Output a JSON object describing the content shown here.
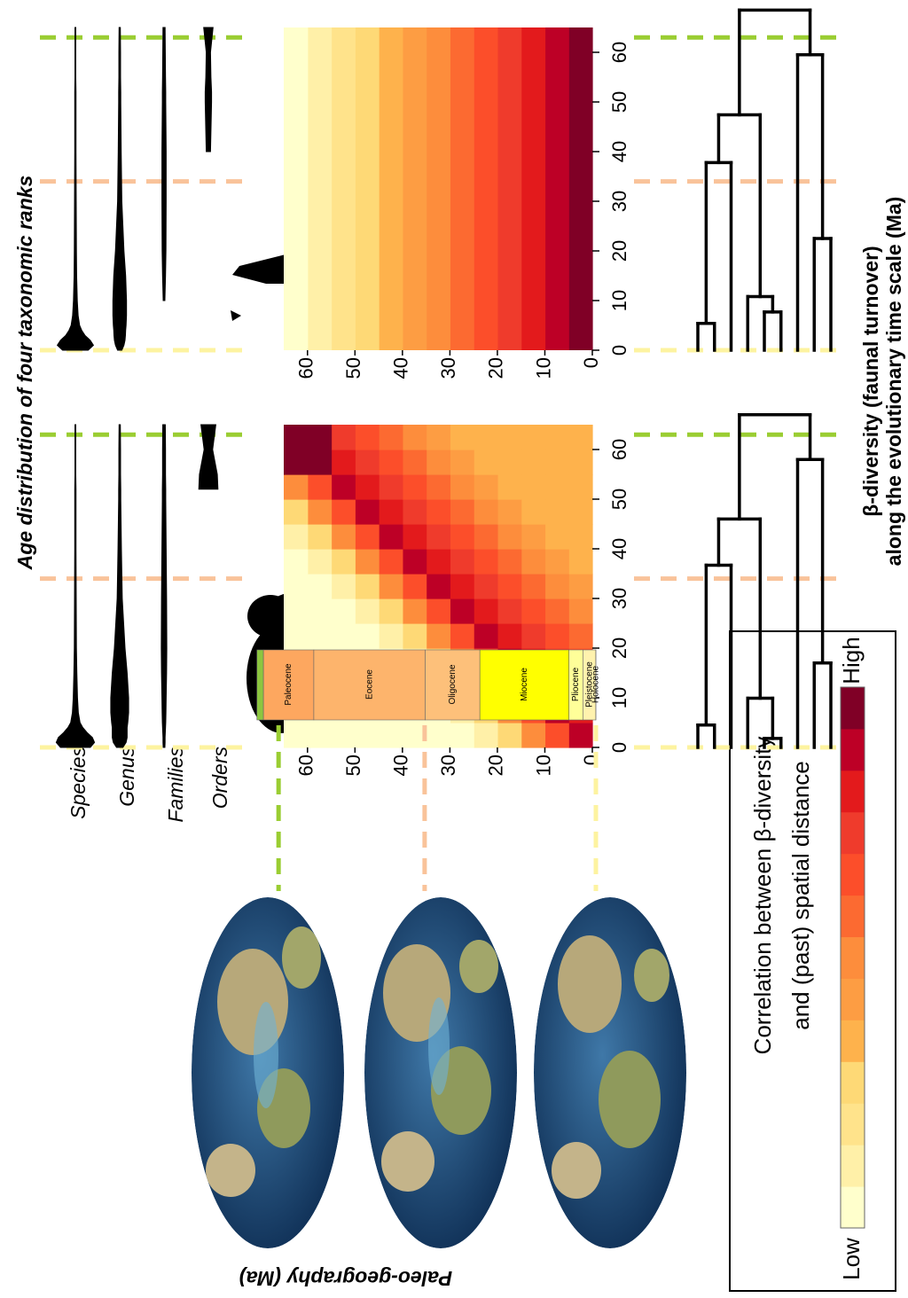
{
  "title": "Age distribution of four taxonomic ranks",
  "ranks": [
    "Species",
    "Genus",
    "Families",
    "Orders"
  ],
  "markers": [
    {
      "age": 63,
      "color": "#9acd32"
    },
    {
      "age": 34,
      "color": "#f9c39a"
    },
    {
      "age": 0,
      "color": "#fdf3a0"
    }
  ],
  "panels": [
    {
      "violins": {
        "ages": [
          0,
          1,
          2,
          3,
          4,
          5,
          7,
          10,
          15,
          20,
          30,
          40,
          50,
          52,
          55,
          60,
          65
        ],
        "density": [
          [
            0.7,
            0.9,
            0.8,
            0.55,
            0.35,
            0.22,
            0.14,
            0.1,
            0.07,
            0.05,
            0.04,
            0.03,
            0.03,
            0.03,
            0.02,
            0.02,
            0.02
          ],
          [
            0.15,
            0.3,
            0.35,
            0.35,
            0.35,
            0.38,
            0.42,
            0.42,
            0.35,
            0.25,
            0.12,
            0.08,
            0.05,
            0.05,
            0.04,
            0.04,
            0.03
          ],
          [
            0.04,
            0.05,
            0.05,
            0.06,
            0.07,
            0.08,
            0.09,
            0.1,
            0.12,
            0.13,
            0.12,
            0.1,
            0.08,
            0.08,
            0.07,
            0.07,
            0.06
          ],
          [
            null,
            null,
            null,
            null,
            null,
            null,
            null,
            null,
            null,
            null,
            null,
            null,
            null,
            0.45,
            0.42,
            0.2,
            0.35
          ]
        ]
      },
      "heatmap": {
        "lim": [
          0,
          65
        ],
        "ticks": [
          0,
          10,
          20,
          30,
          40,
          50,
          60
        ],
        "matrix": [
          [
            11,
            8,
            6,
            3,
            1,
            0,
            0,
            0,
            0,
            0,
            0,
            0,
            0
          ],
          [
            10,
            11,
            8,
            6,
            3,
            1,
            0,
            0,
            0,
            0,
            0,
            0,
            0
          ],
          [
            9,
            10,
            11,
            8,
            6,
            3,
            1,
            0,
            0,
            0,
            0,
            0,
            0
          ],
          [
            8,
            9,
            10,
            11,
            8,
            6,
            3,
            1,
            0,
            0,
            0,
            0,
            0
          ],
          [
            7,
            8,
            9,
            10,
            11,
            8,
            6,
            3,
            1,
            0,
            0,
            0,
            0
          ],
          [
            6,
            7,
            8,
            9,
            10,
            11,
            8,
            6,
            3,
            1,
            0,
            0,
            0
          ],
          [
            5,
            6,
            7,
            8,
            9,
            10,
            11,
            8,
            6,
            3,
            1,
            0,
            0
          ],
          [
            4,
            5,
            6,
            7,
            8,
            9,
            10,
            11,
            8,
            6,
            3,
            1,
            0
          ],
          [
            4,
            4,
            5,
            6,
            7,
            8,
            9,
            10,
            11,
            8,
            6,
            3,
            1
          ],
          [
            4,
            4,
            4,
            5,
            6,
            7,
            8,
            9,
            10,
            11,
            8,
            6,
            3
          ],
          [
            4,
            4,
            4,
            4,
            5,
            6,
            7,
            8,
            9,
            10,
            11,
            8,
            6
          ],
          [
            4,
            4,
            4,
            4,
            4,
            5,
            6,
            7,
            8,
            9,
            10,
            12,
            12
          ],
          [
            4,
            4,
            4,
            4,
            4,
            4,
            5,
            6,
            7,
            8,
            9,
            12,
            12
          ]
        ]
      },
      "dendrogram": {
        "merges": [
          [
            -1,
            -2,
            4.5
          ],
          [
            1,
            -3,
            36.7
          ],
          [
            -5,
            -6,
            1.8
          ],
          [
            -4,
            3,
            9.9
          ],
          [
            2,
            4,
            46
          ],
          [
            -8,
            -9,
            17
          ],
          [
            -7,
            6,
            58
          ],
          [
            5,
            7,
            67
          ]
        ]
      }
    },
    {
      "violins": {
        "ages": [
          0,
          1,
          2,
          3,
          4,
          5,
          7,
          10,
          15,
          20,
          30,
          40,
          50,
          52,
          55,
          60,
          65
        ],
        "density": [
          [
            0.6,
            0.85,
            0.7,
            0.45,
            0.3,
            0.2,
            0.13,
            0.09,
            0.06,
            0.05,
            0.04,
            0.03,
            0.03,
            0.03,
            0.02,
            0.02,
            0.02
          ],
          [
            0.1,
            0.2,
            0.25,
            0.27,
            0.28,
            0.3,
            0.32,
            0.32,
            0.28,
            0.2,
            0.1,
            0.07,
            0.05,
            0.05,
            0.04,
            0.04,
            0.03
          ],
          [
            null,
            null,
            null,
            null,
            null,
            null,
            null,
            0.04,
            0.07,
            0.09,
            0.1,
            0.1,
            0.08,
            0.08,
            0.07,
            0.06,
            0.05
          ],
          [
            null,
            null,
            null,
            null,
            null,
            null,
            null,
            null,
            null,
            null,
            null,
            0.1,
            0.15,
            0.15,
            0.12,
            0.1,
            0.22
          ]
        ]
      },
      "heatmap": {
        "lim": [
          0,
          65
        ],
        "ticks": [
          0,
          10,
          20,
          30,
          40,
          50,
          60
        ],
        "columns": [
          12,
          11,
          10,
          9,
          8,
          7,
          6,
          5,
          4,
          3,
          2,
          1,
          0
        ]
      },
      "dendrogram": {
        "merges": [
          [
            -1,
            -2,
            5.4
          ],
          [
            1,
            -3,
            37.8
          ],
          [
            -5,
            -6,
            7.7
          ],
          [
            -4,
            3,
            10.8
          ],
          [
            2,
            4,
            47.4
          ],
          [
            -8,
            -9,
            22.5
          ],
          [
            -7,
            6,
            59.5
          ],
          [
            5,
            7,
            68.5
          ]
        ]
      }
    }
  ],
  "epochs": [
    {
      "name": null,
      "start": 67.3,
      "end": 66,
      "color": "#8cc63f"
    },
    {
      "name": "Paleocene",
      "start": 66,
      "end": 56,
      "color": "#fda75f"
    },
    {
      "name": "Eocene",
      "start": 56,
      "end": 33.9,
      "color": "#fdb46c"
    },
    {
      "name": "Oligocene",
      "start": 33.9,
      "end": 23.03,
      "color": "#fdc07a"
    },
    {
      "name": "Miocene",
      "start": 23.03,
      "end": 5.333,
      "color": "#ffff00"
    },
    {
      "name": "Pliocene",
      "start": 5.333,
      "end": 2.58,
      "color": "#ffff99"
    },
    {
      "name": "Pleistocene",
      "start": 2.58,
      "end": 0.0117,
      "color": "#fff2ae"
    },
    {
      "name": "Holocene",
      "start": 0.0117,
      "end": 0,
      "color": "#fef2e0"
    }
  ],
  "legend": {
    "lines": [
      "Correlation between β-diversity",
      "and (past) spatial distance"
    ],
    "low": "Low",
    "high": "High",
    "palette": [
      "#ffffcc",
      "#fff0a8",
      "#ffe38b",
      "#fed976",
      "#feb24c",
      "#fd9d43",
      "#fd8d3c",
      "#fc6a31",
      "#fc4e2a",
      "#ef3b2c",
      "#e31a1c",
      "#bd0026",
      "#800026"
    ]
  },
  "side_label": [
    "β-diversity (faunal turnover)",
    "along the evolutionary time scale (Ma)"
  ],
  "paleo_label": "Paleo-geography (Ma)"
}
